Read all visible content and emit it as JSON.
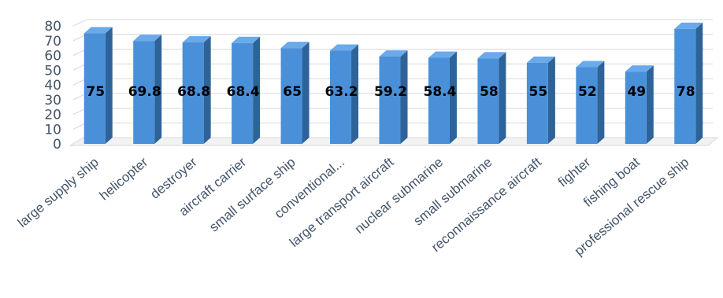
{
  "chart_data": {
    "type": "bar",
    "title": "",
    "xlabel": "",
    "ylabel": "",
    "ylim": [
      0,
      80
    ],
    "yticks": [
      0,
      10,
      20,
      30,
      40,
      50,
      60,
      70,
      80
    ],
    "grid": true,
    "legend": "none",
    "style": "3d-column",
    "categories": [
      "large supply ship",
      "helicopter",
      "destroyer",
      "aircraft carrier",
      "small surface ship",
      "conventional...",
      "large transport aircraft",
      "nuclear submarine",
      "small submarine",
      "reconnaissance aircraft",
      "fighter",
      "fishing boat",
      "professional rescue ship"
    ],
    "values": [
      75,
      69.8,
      68.8,
      68.4,
      65,
      63.2,
      59.2,
      58.4,
      58,
      55,
      52,
      49,
      78
    ],
    "data_labels": [
      "75",
      "69.8",
      "68.8",
      "68.4",
      "65",
      "63.2",
      "59.2",
      "58.4",
      "58",
      "55",
      "52",
      "49",
      "78"
    ],
    "colors": {
      "bar_front": "#4a90d9",
      "bar_side": "#2e6399",
      "bar_top": "#6aa9ea",
      "grid": "#d9d9d9",
      "axis_text": "#44546a",
      "label_text": "#000000"
    }
  }
}
